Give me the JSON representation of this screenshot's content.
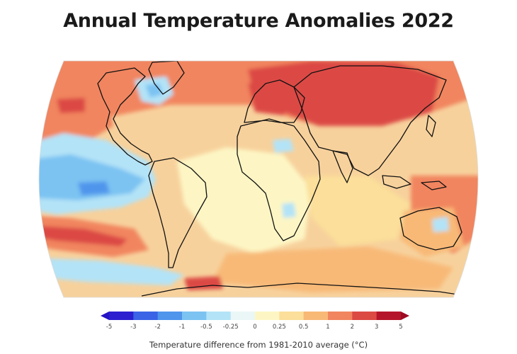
{
  "title": "Annual Temperature Anomalies 2022",
  "legend": {
    "caption": "Temperature difference from 1981-2010 average (°C)",
    "ticks": [
      "-5",
      "-3",
      "-2",
      "-1",
      "-0.5",
      "-0.25",
      "0",
      "0.25",
      "0.5",
      "1",
      "2",
      "3",
      "5"
    ],
    "bin_colors": [
      "#2b1fd0",
      "#3a63e6",
      "#4f95ec",
      "#7cc3f2",
      "#b3e3f7",
      "#eaf7f6",
      "#fdf6c4",
      "#fbdf9a",
      "#f8b977",
      "#f1855f",
      "#dc4a44",
      "#b5152a"
    ],
    "min_extension_color": "#2613c4",
    "max_extension_color": "#9e0a22"
  },
  "colors": {
    "ocean_base": "#f7d19c",
    "coastline": "#111111"
  }
}
